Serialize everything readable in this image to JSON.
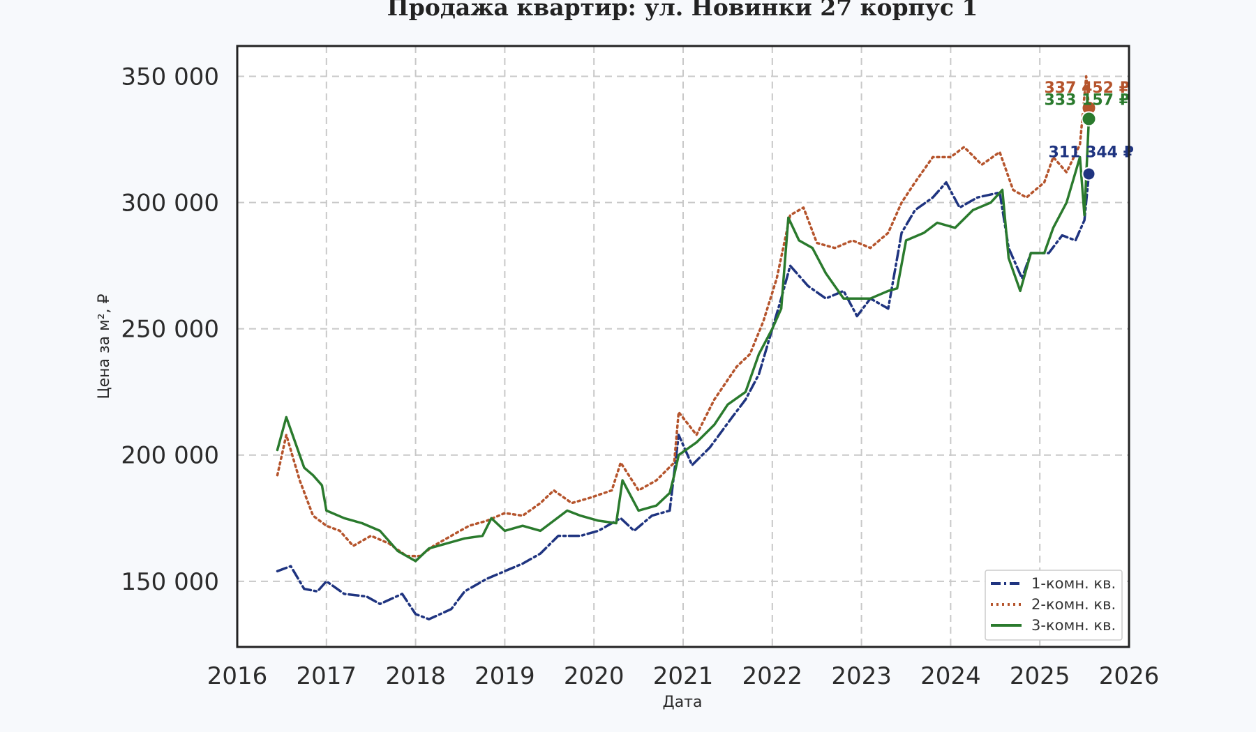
{
  "chart_data": {
    "type": "line",
    "title": "Продажа квартир: ул. Новинки 27 корпус 1",
    "xlabel": "Дата",
    "ylabel": "Цена за м², ₽",
    "xlim": [
      2016.0,
      2026.0
    ],
    "ylim": [
      124000,
      362000
    ],
    "x_ticks": [
      "2016",
      "2017",
      "2018",
      "2019",
      "2020",
      "2021",
      "2022",
      "2023",
      "2024",
      "2025",
      "2026"
    ],
    "y_ticks": [
      "150 000",
      "200 000",
      "250 000",
      "300 000",
      "350 000"
    ],
    "y_tick_values": [
      150000,
      200000,
      250000,
      300000,
      350000
    ],
    "grid": true,
    "legend_position": "bottom-right",
    "series": [
      {
        "name": "1-комн. кв.",
        "color": "#1f3480",
        "style": "dashed",
        "end_label": "311 344 ₽",
        "end_value": 311344,
        "x": [
          2016.45,
          2016.6,
          2016.75,
          2016.9,
          2017.0,
          2017.2,
          2017.45,
          2017.6,
          2017.85,
          2018.0,
          2018.15,
          2018.4,
          2018.55,
          2018.8,
          2019.0,
          2019.2,
          2019.4,
          2019.6,
          2019.85,
          2020.05,
          2020.3,
          2020.45,
          2020.65,
          2020.85,
          2020.95,
          2021.1,
          2021.3,
          2021.55,
          2021.7,
          2021.85,
          2022.0,
          2022.1,
          2022.2,
          2022.4,
          2022.6,
          2022.8,
          2022.95,
          2023.1,
          2023.3,
          2023.45,
          2023.6,
          2023.8,
          2023.95,
          2024.1,
          2024.3,
          2024.55,
          2024.65,
          2024.8,
          2024.9,
          2025.1,
          2025.25,
          2025.4,
          2025.5,
          2025.55
        ],
        "values": [
          154000,
          156000,
          147000,
          146000,
          150000,
          145000,
          144000,
          141000,
          145000,
          137000,
          135000,
          139000,
          146000,
          151000,
          154000,
          157000,
          161000,
          168000,
          168000,
          170000,
          175000,
          170000,
          176000,
          178000,
          208000,
          196000,
          203000,
          215000,
          222000,
          232000,
          250000,
          262000,
          275000,
          267000,
          262000,
          265000,
          255000,
          262000,
          258000,
          288000,
          297000,
          302000,
          308000,
          298000,
          302000,
          304000,
          282000,
          270000,
          280000,
          280000,
          287000,
          285000,
          293000,
          311344
        ]
      },
      {
        "name": "2-комн. кв.",
        "color": "#b5542c",
        "style": "dotted",
        "end_label": "337 452 ₽",
        "end_value": 337452,
        "x": [
          2016.45,
          2016.55,
          2016.7,
          2016.85,
          2017.0,
          2017.15,
          2017.3,
          2017.5,
          2017.7,
          2017.9,
          2018.05,
          2018.2,
          2018.4,
          2018.6,
          2018.8,
          2019.0,
          2019.2,
          2019.4,
          2019.55,
          2019.75,
          2019.95,
          2020.2,
          2020.3,
          2020.5,
          2020.7,
          2020.9,
          2020.95,
          2021.15,
          2021.35,
          2021.6,
          2021.75,
          2021.9,
          2022.05,
          2022.2,
          2022.35,
          2022.5,
          2022.7,
          2022.9,
          2023.1,
          2023.3,
          2023.45,
          2023.6,
          2023.8,
          2024.0,
          2024.15,
          2024.35,
          2024.55,
          2024.7,
          2024.85,
          2025.05,
          2025.15,
          2025.3,
          2025.45,
          2025.52,
          2025.55
        ],
        "values": [
          192000,
          208000,
          190000,
          176000,
          172000,
          170000,
          164000,
          168000,
          165000,
          160000,
          160000,
          164000,
          168000,
          172000,
          174000,
          177000,
          176000,
          181000,
          186000,
          181000,
          183000,
          186000,
          197000,
          186000,
          190000,
          197000,
          217000,
          208000,
          222000,
          235000,
          240000,
          253000,
          270000,
          295000,
          298000,
          284000,
          282000,
          285000,
          282000,
          288000,
          300000,
          308000,
          318000,
          318000,
          322000,
          315000,
          320000,
          305000,
          302000,
          308000,
          318000,
          312000,
          323000,
          350000,
          337452
        ]
      },
      {
        "name": "3-комн. кв.",
        "color": "#2a7a2d",
        "style": "solid",
        "end_label": "333 157 ₽",
        "end_value": 333157,
        "x": [
          2016.45,
          2016.55,
          2016.6,
          2016.75,
          2016.85,
          2016.95,
          2017.0,
          2017.2,
          2017.4,
          2017.6,
          2017.8,
          2018.0,
          2018.15,
          2018.35,
          2018.55,
          2018.75,
          2018.85,
          2019.0,
          2019.2,
          2019.4,
          2019.55,
          2019.7,
          2019.85,
          2020.05,
          2020.25,
          2020.32,
          2020.5,
          2020.7,
          2020.85,
          2020.9,
          2020.95,
          2021.15,
          2021.35,
          2021.5,
          2021.7,
          2021.85,
          2022.0,
          2022.1,
          2022.18,
          2022.3,
          2022.45,
          2022.6,
          2022.8,
          2022.95,
          2023.1,
          2023.3,
          2023.4,
          2023.5,
          2023.7,
          2023.85,
          2024.05,
          2024.25,
          2024.45,
          2024.58,
          2024.65,
          2024.78,
          2024.9,
          2025.05,
          2025.15,
          2025.3,
          2025.45,
          2025.5,
          2025.55
        ],
        "values": [
          202000,
          215000,
          210000,
          195000,
          192000,
          188000,
          178000,
          175000,
          173000,
          170000,
          162000,
          158000,
          163000,
          165000,
          167000,
          168000,
          175000,
          170000,
          172000,
          170000,
          174000,
          178000,
          176000,
          174000,
          173000,
          190000,
          178000,
          180000,
          185000,
          192000,
          200000,
          205000,
          212000,
          220000,
          225000,
          240000,
          250000,
          258000,
          294000,
          285000,
          282000,
          272000,
          262000,
          262000,
          262000,
          265000,
          266000,
          285000,
          288000,
          292000,
          290000,
          297000,
          300000,
          305000,
          278000,
          265000,
          280000,
          280000,
          290000,
          300000,
          318000,
          295000,
          333157
        ]
      }
    ]
  }
}
